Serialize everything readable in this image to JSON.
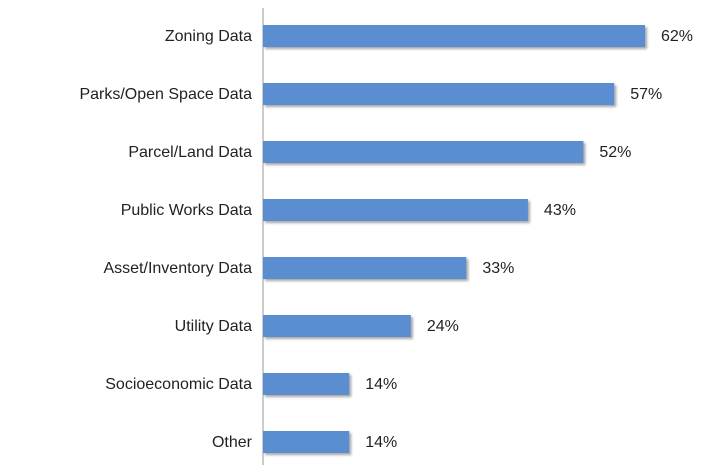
{
  "chart_data": {
    "type": "bar",
    "orientation": "horizontal",
    "categories": [
      "Zoning Data",
      "Parks/Open Space Data",
      "Parcel/Land Data",
      "Public Works Data",
      "Asset/Inventory Data",
      "Utility Data",
      "Socioeconomic Data",
      "Other"
    ],
    "values": [
      62,
      57,
      52,
      43,
      33,
      24,
      14,
      14
    ],
    "value_labels": [
      "62%",
      "57%",
      "52%",
      "43%",
      "33%",
      "24%",
      "14%",
      "14%"
    ],
    "color": "#5a8ed0"
  }
}
